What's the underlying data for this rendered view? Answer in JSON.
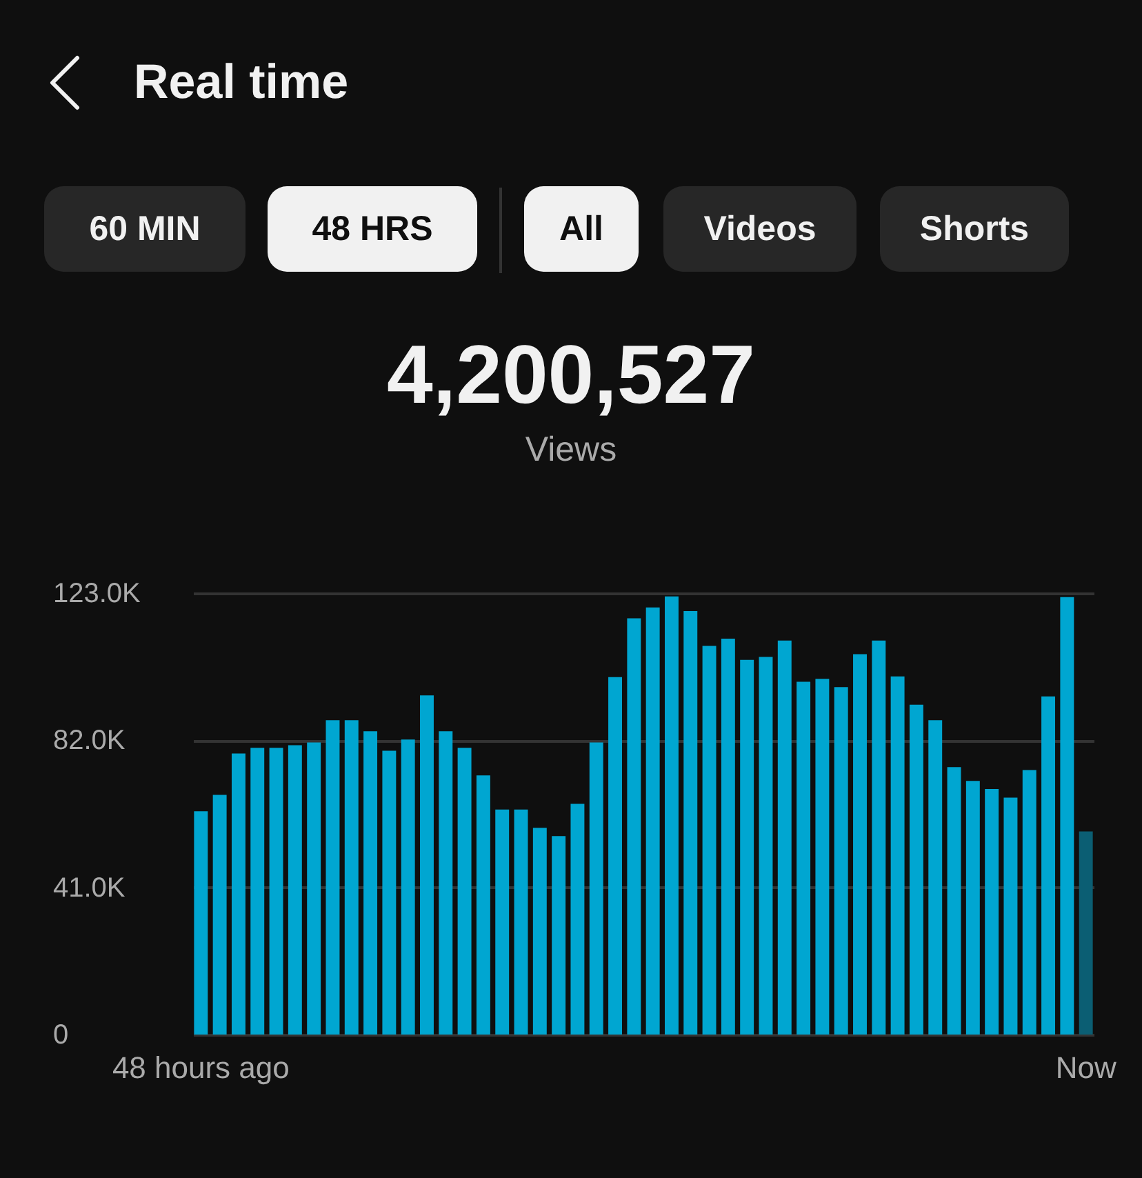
{
  "chart_data": {
    "type": "bar",
    "title": "Real time",
    "annotations": [
      "60 MIN",
      "48 HRS",
      "All",
      "Videos",
      "Shorts",
      "4,200,527",
      "Views"
    ],
    "categories": [
      "48 hours ago",
      null,
      null,
      null,
      null,
      null,
      null,
      null,
      null,
      null,
      null,
      null,
      null,
      null,
      null,
      null,
      null,
      null,
      null,
      null,
      null,
      null,
      null,
      null,
      null,
      null,
      null,
      null,
      null,
      null,
      null,
      null,
      null,
      null,
      null,
      null,
      null,
      null,
      null,
      null,
      null,
      null,
      null,
      null,
      null,
      null,
      null,
      "Now"
    ],
    "values": [
      62200,
      66800,
      78300,
      79900,
      79900,
      80600,
      81400,
      87600,
      87600,
      84500,
      79100,
      82200,
      94500,
      84500,
      79900,
      72200,
      62700,
      62700,
      57600,
      55300,
      64300,
      81400,
      99600,
      116000,
      119000,
      122100,
      118000,
      108300,
      110300,
      104400,
      105200,
      109800,
      98300,
      99100,
      96800,
      106000,
      109800,
      99800,
      91900,
      87600,
      74500,
      70700,
      68400,
      66000,
      73700,
      94200,
      121900,
      56600
    ],
    "colors": [
      "#00a6d1",
      "#00a6d1",
      "#00a6d1",
      "#00a6d1",
      "#00a6d1",
      "#00a6d1",
      "#00a6d1",
      "#00a6d1",
      "#00a6d1",
      "#00a6d1",
      "#00a6d1",
      "#00a6d1",
      "#00a6d1",
      "#00a6d1",
      "#00a6d1",
      "#00a6d1",
      "#00a6d1",
      "#00a6d1",
      "#00a6d1",
      "#00a6d1",
      "#00a6d1",
      "#00a6d1",
      "#00a6d1",
      "#00a6d1",
      "#00a6d1",
      "#00a6d1",
      "#00a6d1",
      "#00a6d1",
      "#00a6d1",
      "#00a6d1",
      "#00a6d1",
      "#00a6d1",
      "#00a6d1",
      "#00a6d1",
      "#00a6d1",
      "#00a6d1",
      "#00a6d1",
      "#00a6d1",
      "#00a6d1",
      "#00a6d1",
      "#00a6d1",
      "#00a6d1",
      "#00a6d1",
      "#00a6d1",
      "#00a6d1",
      "#00a6d1",
      "#00a6d1",
      "#0b5e73"
    ],
    "ylim": [
      0,
      123000
    ],
    "yticks": [
      {
        "value": 0,
        "label": "0"
      },
      {
        "value": 41000,
        "label": "41.0K"
      },
      {
        "value": 82000,
        "label": "82.0K"
      },
      {
        "value": 123000,
        "label": "123.0K"
      }
    ],
    "grid": "y"
  }
}
